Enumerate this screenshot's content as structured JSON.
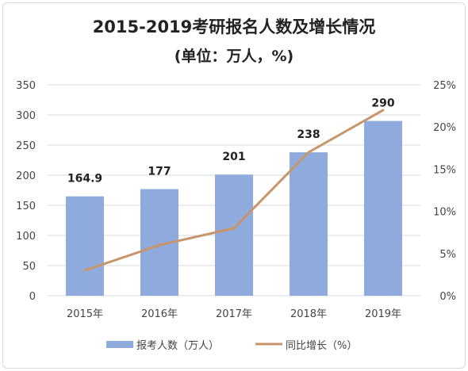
{
  "chart_data": {
    "type": "bar",
    "title": "2015-2019考研报名人数及增长情况",
    "subtitle": "(单位：万人，%)",
    "categories": [
      "2015年",
      "2016年",
      "2017年",
      "2018年",
      "2019年"
    ],
    "series": [
      {
        "name": "报考人数（万人）",
        "type": "bar",
        "axis": "left",
        "color": "#8faadc",
        "values": [
          164.9,
          177,
          201,
          238,
          290
        ],
        "labels": [
          "164.9",
          "177",
          "201",
          "238",
          "290"
        ]
      },
      {
        "name": "同比增长（%）",
        "type": "line",
        "axis": "right",
        "color": "#c8956b",
        "values": [
          3.0,
          6.0,
          8.0,
          17.0,
          22.0
        ]
      }
    ],
    "y_left": {
      "min": 0,
      "max": 350,
      "ticks": [
        0,
        50,
        100,
        150,
        200,
        250,
        300,
        350
      ],
      "tick_labels": [
        "0",
        "50",
        "100",
        "150",
        "200",
        "250",
        "300",
        "350"
      ]
    },
    "y_right": {
      "min": 0,
      "max": 25,
      "ticks": [
        0,
        5,
        10,
        15,
        20,
        25
      ],
      "tick_labels": [
        "0%",
        "5%",
        "10%",
        "15%",
        "20%",
        "25%"
      ]
    },
    "grid": true,
    "legend": "bottom-center"
  }
}
